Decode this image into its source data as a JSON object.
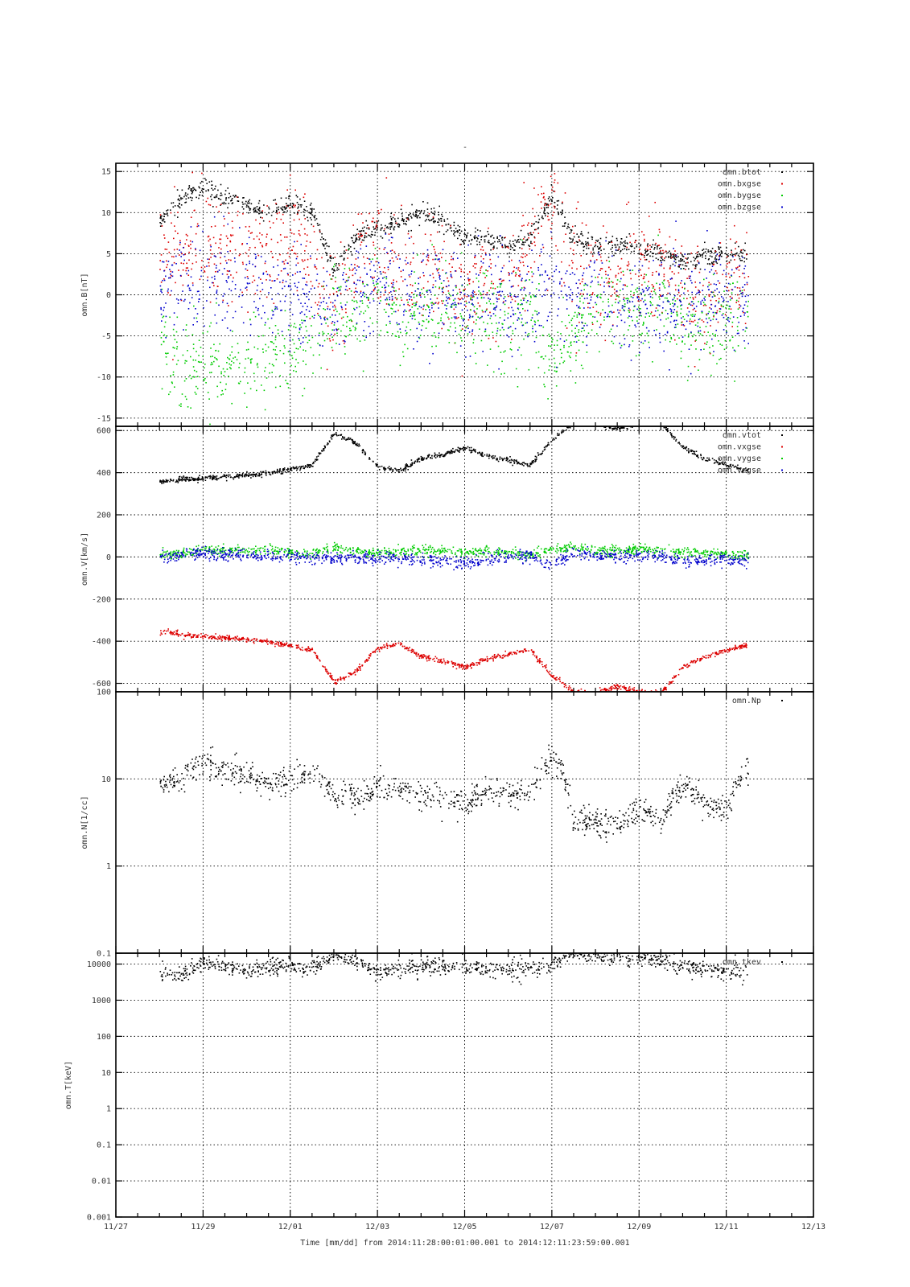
{
  "figure": {
    "title": "-",
    "xlabel": "Time [mm/dd]  from 2014:11:28:00:01:00.001  to  2014:12:11:23:59:00.001",
    "colors": {
      "black": "#000000",
      "red": "#dd0000",
      "green": "#00cc00",
      "blue": "#0000cc"
    }
  },
  "chart_data": [
    {
      "type": "scatter",
      "ylabel": "omn.B[nT]",
      "yscale": "linear",
      "ylim": [
        -16,
        16
      ],
      "yticks": [
        -15,
        -10,
        -5,
        0,
        5,
        10,
        15
      ],
      "ytick_labels": [
        "-15",
        "-10",
        "-5",
        "0",
        "5",
        "10",
        "15"
      ],
      "xlim": [
        0,
        16
      ],
      "x_ticks": [
        0,
        2,
        4,
        6,
        8,
        10,
        12,
        14,
        16
      ],
      "x_tick_labels": [
        "11/27",
        "11/29",
        "12/01",
        "12/03",
        "12/05",
        "12/07",
        "12/09",
        "12/11",
        "12/13"
      ],
      "grid": true,
      "legend_position": "top-right",
      "x": [
        1.0,
        1.5,
        2.0,
        2.5,
        3.0,
        3.5,
        4.0,
        4.5,
        5.0,
        5.5,
        6.0,
        6.5,
        7.0,
        7.5,
        8.0,
        8.5,
        9.0,
        9.5,
        10.0,
        10.5,
        11.0,
        11.5,
        12.0,
        12.5,
        13.0,
        13.5,
        14.0,
        14.5
      ],
      "series": [
        {
          "name": "omn.btot",
          "color": "#000000",
          "noise": 0.6,
          "values": [
            9,
            12,
            13,
            12,
            11,
            10,
            11,
            10,
            3,
            7,
            8,
            9,
            10,
            9,
            7,
            7,
            6,
            7,
            12,
            7,
            6,
            6,
            6,
            5,
            4,
            5,
            5,
            5
          ]
        },
        {
          "name": "omn.bxgse",
          "color": "#dd0000",
          "noise": 3.2,
          "values": [
            6,
            5,
            6,
            5,
            4,
            6,
            9,
            5,
            -2,
            5,
            6,
            4,
            3,
            2,
            0,
            2,
            1,
            6,
            11,
            3,
            2,
            3,
            4,
            3,
            1,
            -2,
            2,
            3
          ]
        },
        {
          "name": "omn.bygse",
          "color": "#00cc00",
          "noise": 2.8,
          "values": [
            -6,
            -9,
            -9,
            -8,
            -8,
            -7,
            -7,
            -5,
            -1,
            -2,
            0,
            -4,
            -2,
            -1,
            -2,
            -3,
            -3,
            -2,
            -8,
            -4,
            -2,
            -1,
            -2,
            -1,
            -4,
            -3,
            -3,
            -3
          ]
        },
        {
          "name": "omn.bzgse",
          "color": "#0000cc",
          "noise": 3.0,
          "values": [
            1,
            2,
            1,
            2,
            1,
            0,
            0,
            0,
            -2,
            1,
            2,
            1,
            0,
            1,
            -1,
            0,
            -1,
            -1,
            3,
            -1,
            0,
            -1,
            0,
            -1,
            -1,
            0,
            0,
            -1
          ]
        }
      ]
    },
    {
      "type": "scatter",
      "ylabel": "omn.V[km/s]",
      "yscale": "linear",
      "ylim": [
        -640,
        620
      ],
      "yticks": [
        -600,
        -400,
        -200,
        0,
        200,
        400,
        600
      ],
      "ytick_labels": [
        "-600",
        "-400",
        "-200",
        "0",
        "200",
        "400",
        "600"
      ],
      "xlim": [
        0,
        16
      ],
      "x_ticks": [
        0,
        2,
        4,
        6,
        8,
        10,
        12,
        14,
        16
      ],
      "grid": true,
      "legend_position": "top-right",
      "x": [
        1.0,
        1.5,
        2.0,
        2.5,
        3.0,
        3.5,
        4.0,
        4.5,
        5.0,
        5.5,
        6.0,
        6.5,
        7.0,
        7.5,
        8.0,
        8.5,
        9.0,
        9.5,
        10.0,
        10.5,
        11.0,
        11.5,
        12.0,
        12.5,
        13.0,
        13.5,
        14.0,
        14.5
      ],
      "series": [
        {
          "name": "omn.vtot",
          "color": "#000000",
          "noise": 6,
          "values": [
            360,
            370,
            375,
            385,
            390,
            400,
            420,
            440,
            590,
            540,
            430,
            410,
            470,
            490,
            520,
            480,
            460,
            440,
            560,
            640,
            640,
            610,
            640,
            640,
            520,
            470,
            440,
            410
          ]
        },
        {
          "name": "omn.vxgse",
          "color": "#dd0000",
          "noise": 6,
          "values": [
            -355,
            -365,
            -375,
            -380,
            -390,
            -400,
            -420,
            -440,
            -590,
            -540,
            -430,
            -410,
            -470,
            -490,
            -520,
            -480,
            -460,
            -440,
            -560,
            -640,
            -640,
            -610,
            -640,
            -640,
            -520,
            -470,
            -440,
            -410
          ]
        },
        {
          "name": "omn.vygse",
          "color": "#00cc00",
          "noise": 12,
          "values": [
            10,
            20,
            40,
            35,
            30,
            35,
            30,
            20,
            50,
            30,
            20,
            25,
            35,
            30,
            25,
            30,
            20,
            15,
            40,
            50,
            35,
            30,
            40,
            30,
            25,
            20,
            15,
            10
          ]
        },
        {
          "name": "omn.vzgse",
          "color": "#0000cc",
          "noise": 15,
          "values": [
            0,
            10,
            20,
            15,
            10,
            5,
            5,
            0,
            -10,
            -5,
            0,
            -5,
            -10,
            -20,
            -30,
            -10,
            0,
            5,
            -40,
            20,
            10,
            5,
            10,
            5,
            -20,
            -10,
            -10,
            -15
          ]
        }
      ]
    },
    {
      "type": "scatter",
      "ylabel": "omn.N[1/cc]",
      "yscale": "log",
      "ylim": [
        0.1,
        100
      ],
      "yticks": [
        0.1,
        1,
        10,
        100
      ],
      "ytick_labels": [
        "0.1",
        "1",
        "10",
        "100"
      ],
      "xlim": [
        0,
        16
      ],
      "x_ticks": [
        0,
        2,
        4,
        6,
        8,
        10,
        12,
        14,
        16
      ],
      "grid": true,
      "legend_position": "top-right",
      "x": [
        1.0,
        1.5,
        2.0,
        2.5,
        3.0,
        3.5,
        4.0,
        4.5,
        5.0,
        5.5,
        6.0,
        6.5,
        7.0,
        7.5,
        8.0,
        8.5,
        9.0,
        9.5,
        10.0,
        10.5,
        11.0,
        11.5,
        12.0,
        12.5,
        13.0,
        13.5,
        14.0,
        14.5
      ],
      "series": [
        {
          "name": "omn.Np",
          "color": "#000000",
          "noise": 0.08,
          "values": [
            8.5,
            10,
            17,
            13,
            11,
            9,
            10,
            12,
            6.5,
            6.2,
            7.5,
            8,
            7,
            6,
            5.5,
            7,
            6.8,
            7,
            18,
            3.5,
            3.3,
            2.8,
            4.5,
            3.2,
            9,
            5,
            4.5,
            14
          ]
        }
      ]
    },
    {
      "type": "scatter",
      "ylabel": "omn.T[keV]",
      "yscale": "log",
      "ylim": [
        0.001,
        20000
      ],
      "yticks": [
        0.001,
        0.01,
        0.1,
        1,
        10,
        100,
        1000,
        10000
      ],
      "ytick_labels": [
        "0.001",
        "0.01",
        "0.1",
        "1",
        "10",
        "100",
        "1000",
        "10000"
      ],
      "xlim": [
        0,
        16
      ],
      "x_ticks": [
        0,
        2,
        4,
        6,
        8,
        10,
        12,
        14,
        16
      ],
      "grid": true,
      "legend_position": "top-right",
      "x": [
        1.0,
        1.5,
        2.0,
        2.5,
        3.0,
        3.5,
        4.0,
        4.5,
        5.0,
        5.5,
        6.0,
        6.5,
        7.0,
        7.5,
        8.0,
        8.5,
        9.0,
        9.5,
        10.0,
        10.5,
        11.0,
        11.5,
        12.0,
        12.5,
        13.0,
        13.5,
        14.0,
        14.5
      ],
      "series": [
        {
          "name": "omn.tkev",
          "color": "#000000",
          "noise": 0.12,
          "values": [
            5500,
            5000,
            11000,
            9000,
            6500,
            8000,
            9500,
            8000,
            18000,
            12000,
            6000,
            7500,
            9000,
            9000,
            8500,
            7500,
            7000,
            8000,
            10000,
            20000,
            17000,
            15000,
            18000,
            12000,
            9000,
            7500,
            6500,
            5000
          ]
        }
      ]
    }
  ]
}
